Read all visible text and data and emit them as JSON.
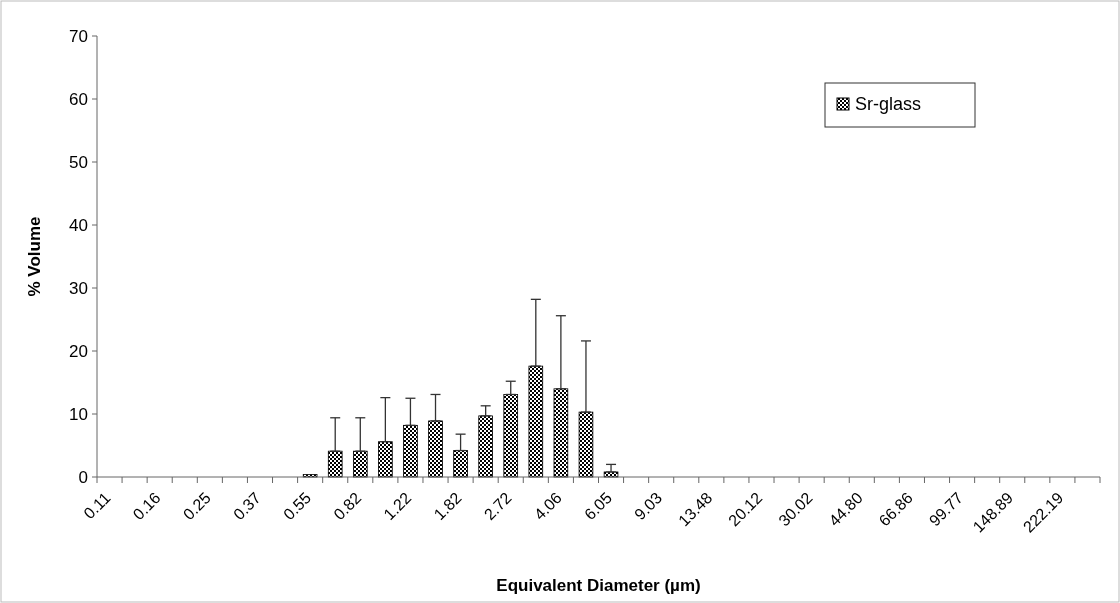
{
  "chart_data": {
    "type": "bar",
    "xlabel": "Equivalent Diameter (µm)",
    "ylabel": "% Volume",
    "categories": [
      "0.11",
      null,
      "0.16",
      null,
      "0.25",
      null,
      "0.37",
      null,
      "0.55",
      null,
      "0.82",
      null,
      "1.22",
      null,
      "1.82",
      null,
      "2.72",
      null,
      "4.06",
      null,
      "6.05",
      null,
      "9.03",
      null,
      "13.48",
      null,
      "20.12",
      null,
      "30.02",
      null,
      "44.80",
      null,
      "66.86",
      null,
      "99.77",
      null,
      "148.89",
      null,
      "222.19",
      null
    ],
    "series": [
      {
        "name": "Sr-glass",
        "color": "#000000",
        "values": [
          0,
          0,
          0,
          0,
          0,
          0,
          0,
          0,
          0.4,
          4.1,
          4.1,
          5.6,
          8.2,
          8.9,
          4.2,
          9.7,
          13.1,
          17.6,
          14.0,
          10.3,
          0.8,
          0,
          0,
          0,
          0,
          0,
          0,
          0,
          0,
          0,
          0,
          0,
          0,
          0,
          0,
          0,
          0,
          0,
          0,
          0
        ],
        "errors": [
          null,
          null,
          null,
          null,
          null,
          null,
          null,
          null,
          null,
          [
            4.1,
            9.4
          ],
          [
            4.1,
            9.4
          ],
          [
            5.6,
            12.6
          ],
          [
            8.2,
            12.5
          ],
          [
            8.9,
            13.1
          ],
          [
            4.2,
            6.8
          ],
          [
            9.7,
            11.3
          ],
          [
            13.1,
            15.2
          ],
          [
            17.6,
            28.2
          ],
          [
            14.0,
            25.6
          ],
          [
            10.3,
            21.6
          ],
          [
            0.8,
            2.0
          ],
          null,
          null,
          null,
          null,
          null,
          null,
          null,
          null,
          null,
          null,
          null,
          null,
          null,
          null,
          null,
          null,
          null,
          null,
          null
        ]
      }
    ],
    "ylim": [
      0,
      70
    ],
    "yticks": [
      0,
      10,
      20,
      30,
      40,
      50,
      60,
      70
    ],
    "legend": "top right",
    "grid": false
  }
}
